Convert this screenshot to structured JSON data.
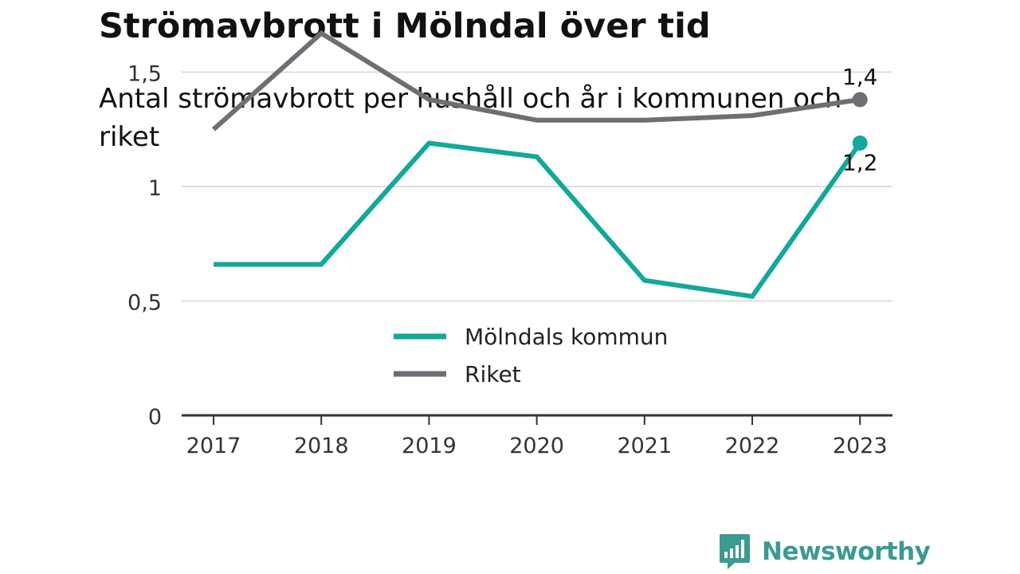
{
  "title": "Strömavbrott i Mölndal över tid",
  "subtitle": "Antal strömavbrott per hushåll och år i kommunen och riket",
  "brand": {
    "name": "Newsworthy",
    "icon": "newsworthy-logo-icon"
  },
  "colors": {
    "molndal": "#12a89a",
    "riket": "#6f6e75",
    "grid": "#dddddd",
    "axis": "#333333",
    "brand": "#3b9a92"
  },
  "chart_data": {
    "type": "line",
    "categories": [
      "2017",
      "2018",
      "2019",
      "2020",
      "2021",
      "2022",
      "2023"
    ],
    "series": [
      {
        "name": "Mölndals kommun",
        "values": [
          0.66,
          0.66,
          1.19,
          1.13,
          0.59,
          0.52,
          1.19
        ],
        "color": "#12a89a",
        "end_label": "1,2"
      },
      {
        "name": "Riket",
        "values": [
          1.25,
          1.67,
          1.38,
          1.29,
          1.29,
          1.31,
          1.38
        ],
        "color": "#6f6e75",
        "end_label": "1,4"
      }
    ],
    "yticks": [
      {
        "value": 0,
        "label": "0"
      },
      {
        "value": 0.5,
        "label": "0,5"
      },
      {
        "value": 1,
        "label": "1"
      },
      {
        "value": 1.5,
        "label": "1,5"
      }
    ],
    "ylim": [
      0,
      1.75
    ],
    "grid": true,
    "legend": "center"
  }
}
